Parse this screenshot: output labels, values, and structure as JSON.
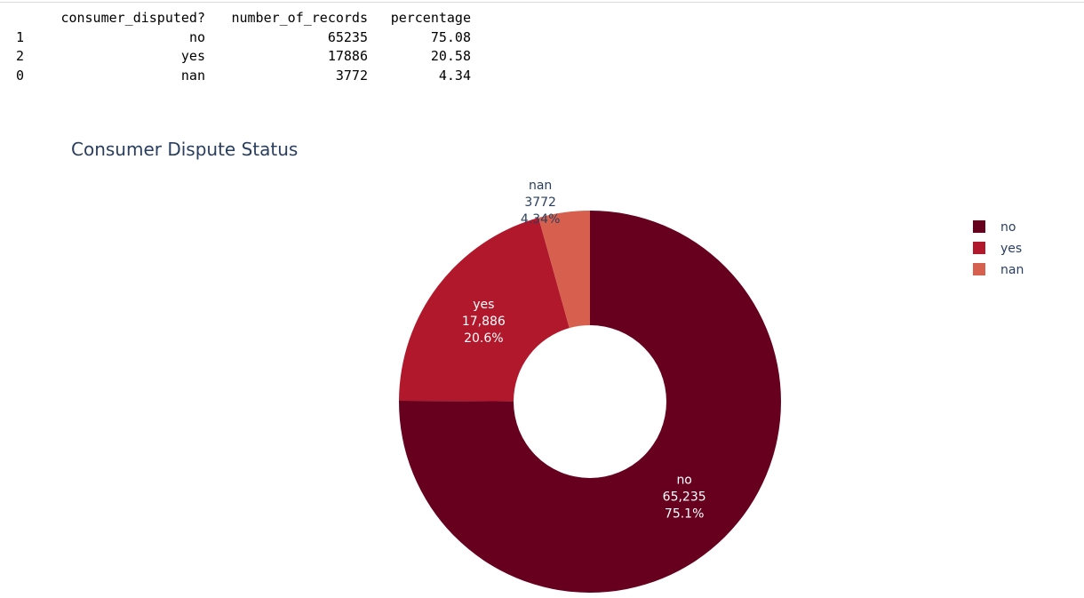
{
  "table": {
    "headers": [
      "",
      "consumer_disputed?",
      "number_of_records",
      "percentage"
    ],
    "rows": [
      {
        "index": "1",
        "consumer_disputed": "no",
        "number_of_records": "65235",
        "percentage": "75.08"
      },
      {
        "index": "2",
        "consumer_disputed": "yes",
        "number_of_records": "17886",
        "percentage": "20.58"
      },
      {
        "index": "0",
        "consumer_disputed": "nan",
        "number_of_records": "3772",
        "percentage": "4.34"
      }
    ]
  },
  "chart_data": {
    "type": "pie",
    "title": "Consumer Dispute Status",
    "hole": 0.4,
    "legend_position": "top-right",
    "slices": [
      {
        "label": "no",
        "value": 65235,
        "value_text": "65,235",
        "percent_text": "75.1%",
        "color": "#67001f"
      },
      {
        "label": "yes",
        "value": 17886,
        "value_text": "17,886",
        "percent_text": "20.6%",
        "color": "#b2182b"
      },
      {
        "label": "nan",
        "value": 3772,
        "value_text": "3772",
        "percent_text": "4.34%",
        "color": "#d6604d"
      }
    ]
  }
}
